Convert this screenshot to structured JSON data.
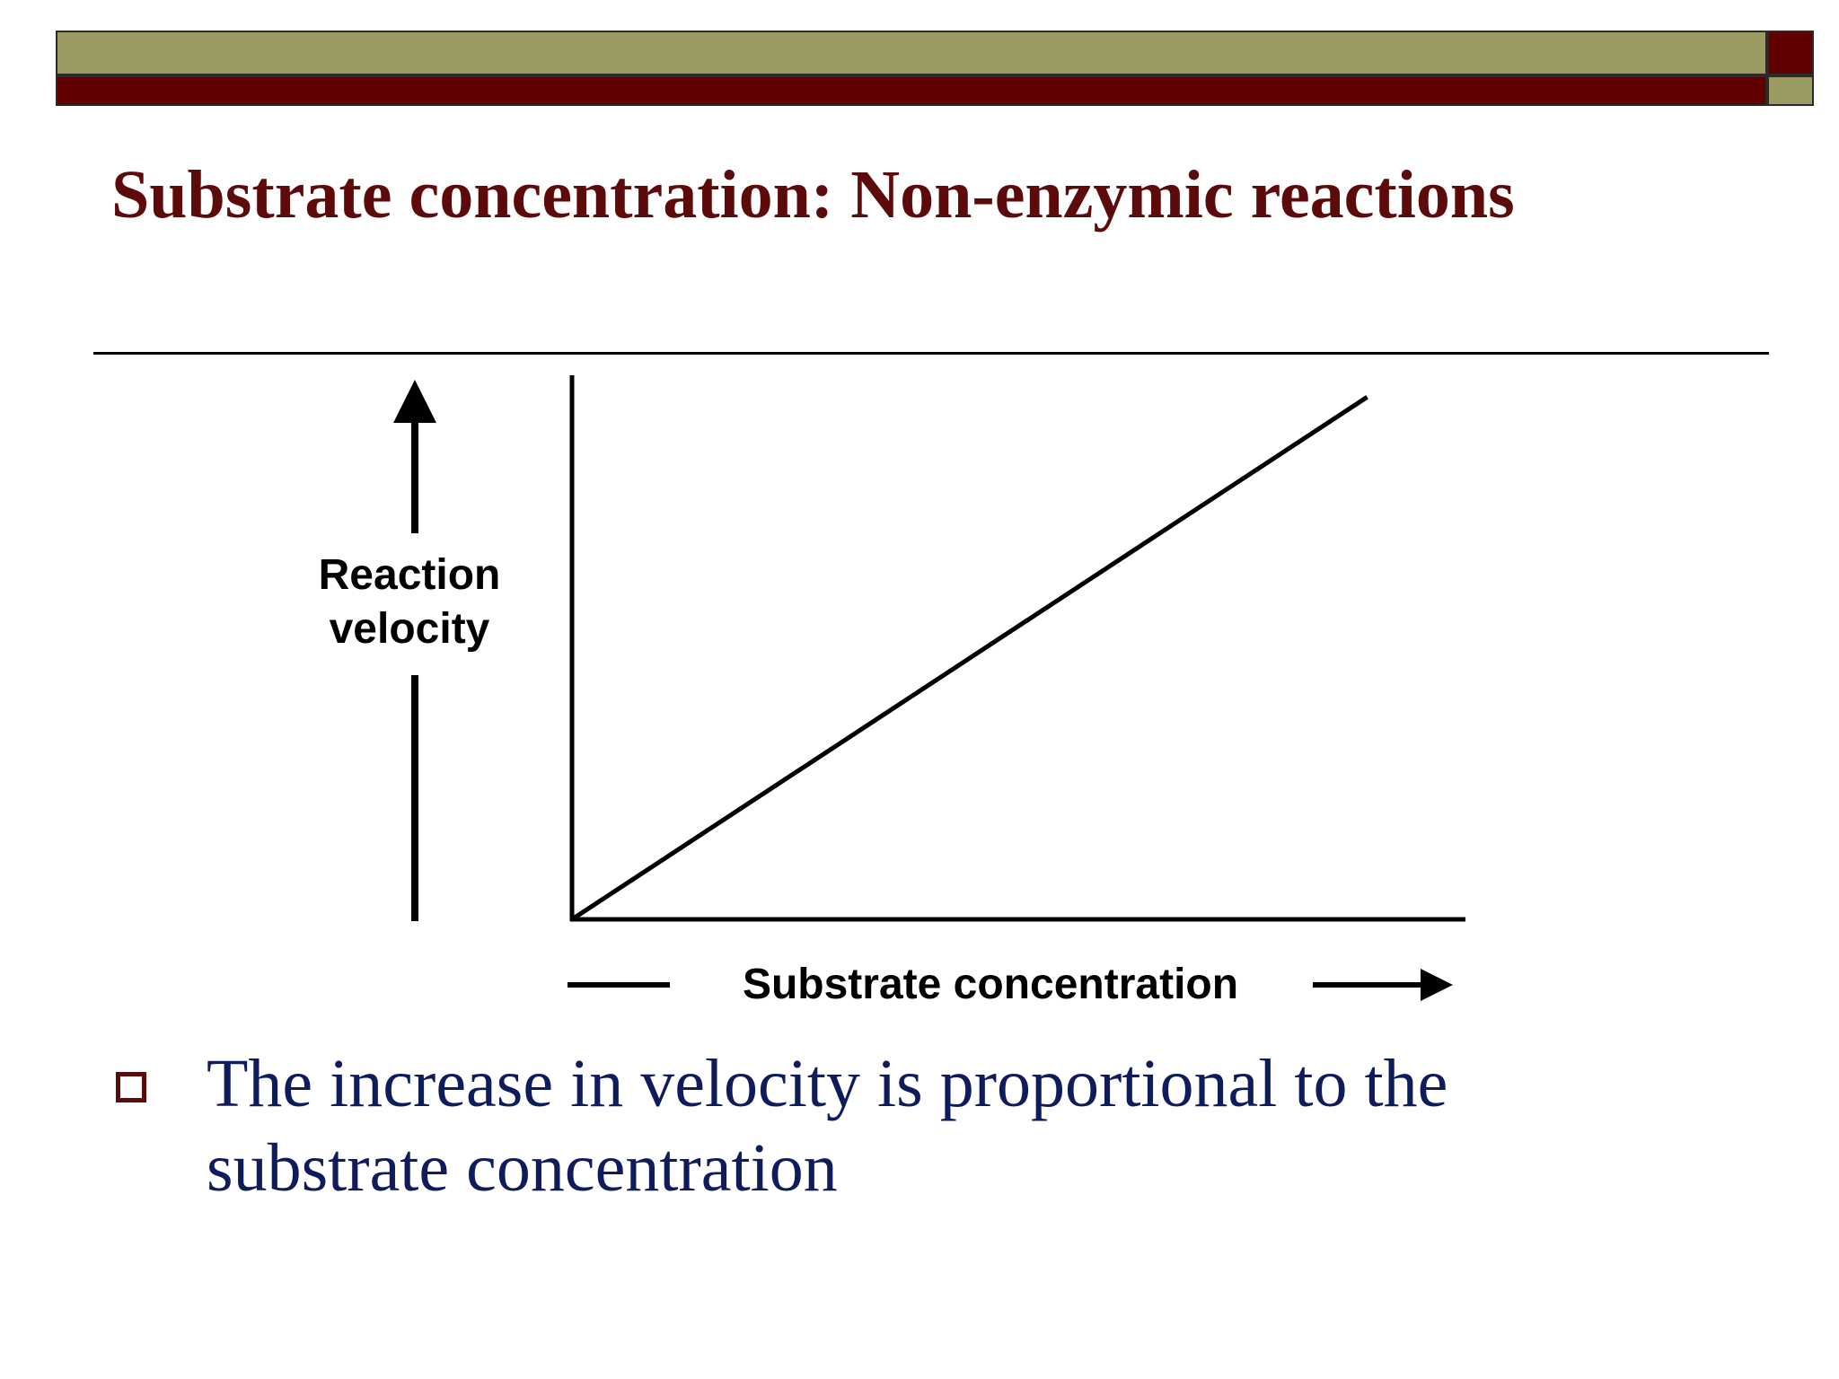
{
  "slide": {
    "title": "Substrate concentration: Non-enzymic reactions",
    "bullet": "The increase in velocity is proportional to the substrate concentration"
  },
  "colors": {
    "header_olive": "#9c9a63",
    "header_red": "#600000",
    "title": "#5c0a0a",
    "bullet_text": "#0e1c5c",
    "bullet_box": "#5c0a0a",
    "plot": "#000000"
  },
  "chart_data": {
    "type": "line",
    "title": "",
    "xlabel": "Substrate concentration",
    "ylabel_lines": [
      "Reaction",
      "velocity"
    ],
    "xlim": [
      0,
      1
    ],
    "ylim": [
      0,
      1
    ],
    "grid": false,
    "legend": "none",
    "axis_tick_labels": "none",
    "series": [
      {
        "x": [
          0,
          0.89
        ],
        "y": [
          0,
          0.96
        ]
      }
    ]
  }
}
